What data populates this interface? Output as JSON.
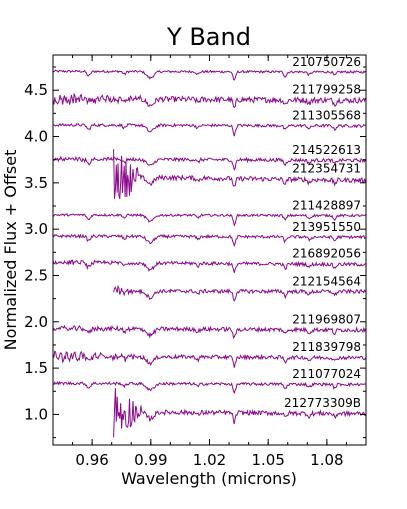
{
  "chart_data": {
    "type": "line",
    "title": "Y Band",
    "xlabel": "Wavelength (microns)",
    "ylabel": "Normalized Flux + Offset",
    "xlim": [
      0.94,
      1.1
    ],
    "ylim": [
      0.67,
      4.88
    ],
    "xticks": [
      0.96,
      0.99,
      1.02,
      1.05,
      1.08
    ],
    "xtick_labels": [
      "0.96",
      "0.99",
      "1.02",
      "1.05",
      "1.08"
    ],
    "yticks": [
      1.0,
      1.5,
      2.0,
      2.5,
      3.0,
      3.5,
      4.0,
      4.5
    ],
    "ytick_labels": [
      "1.0",
      "1.5",
      "2.0",
      "2.5",
      "3.0",
      "3.5",
      "4.0",
      "4.5"
    ],
    "grid": false,
    "line_color": "#8b0a8b",
    "series": [
      {
        "name": "210750726",
        "offset": 4.7,
        "start": 0.94,
        "noise": 0.012,
        "slope": -0.1,
        "early_noise": 0.0
      },
      {
        "name": "211799258",
        "offset": 4.4,
        "start": 0.94,
        "noise": 0.03,
        "slope": -0.25,
        "early_noise": 0.04
      },
      {
        "name": "211305568",
        "offset": 4.12,
        "start": 0.94,
        "noise": 0.015,
        "slope": -0.12,
        "early_noise": 0.0
      },
      {
        "name": "214522613",
        "offset": 3.75,
        "start": 0.94,
        "noise": 0.018,
        "slope": -0.2,
        "early_noise": 0.01
      },
      {
        "name": "212354731",
        "offset": 3.55,
        "start": 0.971,
        "noise": 0.025,
        "slope": -0.6,
        "early_noise": 0.25
      },
      {
        "name": "211428897",
        "offset": 3.15,
        "start": 0.94,
        "noise": 0.012,
        "slope": -0.1,
        "early_noise": 0.0
      },
      {
        "name": "213951550",
        "offset": 2.92,
        "start": 0.94,
        "noise": 0.015,
        "slope": -0.15,
        "early_noise": 0.0
      },
      {
        "name": "216892056",
        "offset": 2.63,
        "start": 0.94,
        "noise": 0.018,
        "slope": -0.28,
        "early_noise": 0.01
      },
      {
        "name": "212154564",
        "offset": 2.33,
        "start": 0.971,
        "noise": 0.02,
        "slope": -0.1,
        "early_noise": 0.04
      },
      {
        "name": "211969807",
        "offset": 1.92,
        "start": 0.94,
        "noise": 0.022,
        "slope": -0.2,
        "early_noise": 0.01
      },
      {
        "name": "211839798",
        "offset": 1.62,
        "start": 0.94,
        "noise": 0.02,
        "slope": -0.2,
        "early_noise": 0.04
      },
      {
        "name": "211077024",
        "offset": 1.33,
        "start": 0.94,
        "noise": 0.015,
        "slope": -0.15,
        "early_noise": 0.0
      },
      {
        "name": "212773309B",
        "offset": 1.02,
        "start": 0.971,
        "noise": 0.025,
        "slope": -0.3,
        "early_noise": 0.25
      }
    ]
  }
}
